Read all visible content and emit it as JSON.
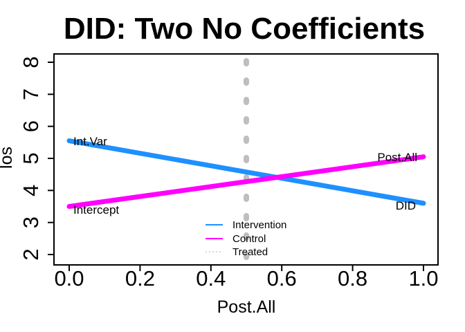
{
  "chart_data": {
    "type": "line",
    "title": "DID: Two No Coefficients",
    "xlabel": "Post.All",
    "ylabel": "los",
    "xlim": [
      0,
      1
    ],
    "ylim": [
      2,
      8
    ],
    "grid": false,
    "x_ticks": {
      "values": [
        0,
        0.2,
        0.4,
        0.6,
        0.8,
        1.0
      ],
      "labels": [
        "0.0",
        "0.2",
        "0.4",
        "0.6",
        "0.8",
        "1.0"
      ]
    },
    "y_ticks": {
      "values": [
        2,
        3,
        4,
        5,
        6,
        7,
        8
      ],
      "labels": [
        "2",
        "3",
        "4",
        "5",
        "6",
        "7",
        "8"
      ]
    },
    "series": [
      {
        "name": "Treated",
        "type": "vline",
        "x": 0.5,
        "color": "#BEBEBE",
        "line_style": "dashed",
        "line_width": 8
      },
      {
        "name": "Intervention",
        "type": "line",
        "x": [
          0,
          1
        ],
        "y": [
          5.55,
          3.6
        ],
        "color": "#1E90FF",
        "line_style": "solid",
        "line_width": 7
      },
      {
        "name": "Control",
        "type": "line",
        "x": [
          0,
          1
        ],
        "y": [
          3.5,
          5.05
        ],
        "color": "#FF00FF",
        "line_style": "solid",
        "line_width": 7
      }
    ],
    "annotations": [
      {
        "text": "Int.Var",
        "x": 0.02,
        "y": 5.55
      },
      {
        "text": "Intercept",
        "x": 0.02,
        "y": 3.42
      },
      {
        "text": "Post.All",
        "x": 0.98,
        "y": 5.15
      },
      {
        "text": "DID",
        "x": 0.98,
        "y": 3.42
      }
    ],
    "legend": {
      "position": "bottom-center-inside",
      "items": [
        {
          "label": "Intervention",
          "color": "#1E90FF",
          "style": "solid"
        },
        {
          "label": "Control",
          "color": "#FF00FF",
          "style": "solid"
        },
        {
          "label": "Treated",
          "color": "#C8C8C8",
          "style": "dotted"
        }
      ]
    },
    "colors": {
      "axis": "#000000",
      "background": "#FFFFFF",
      "treated_line": "#BEBEBE"
    }
  }
}
